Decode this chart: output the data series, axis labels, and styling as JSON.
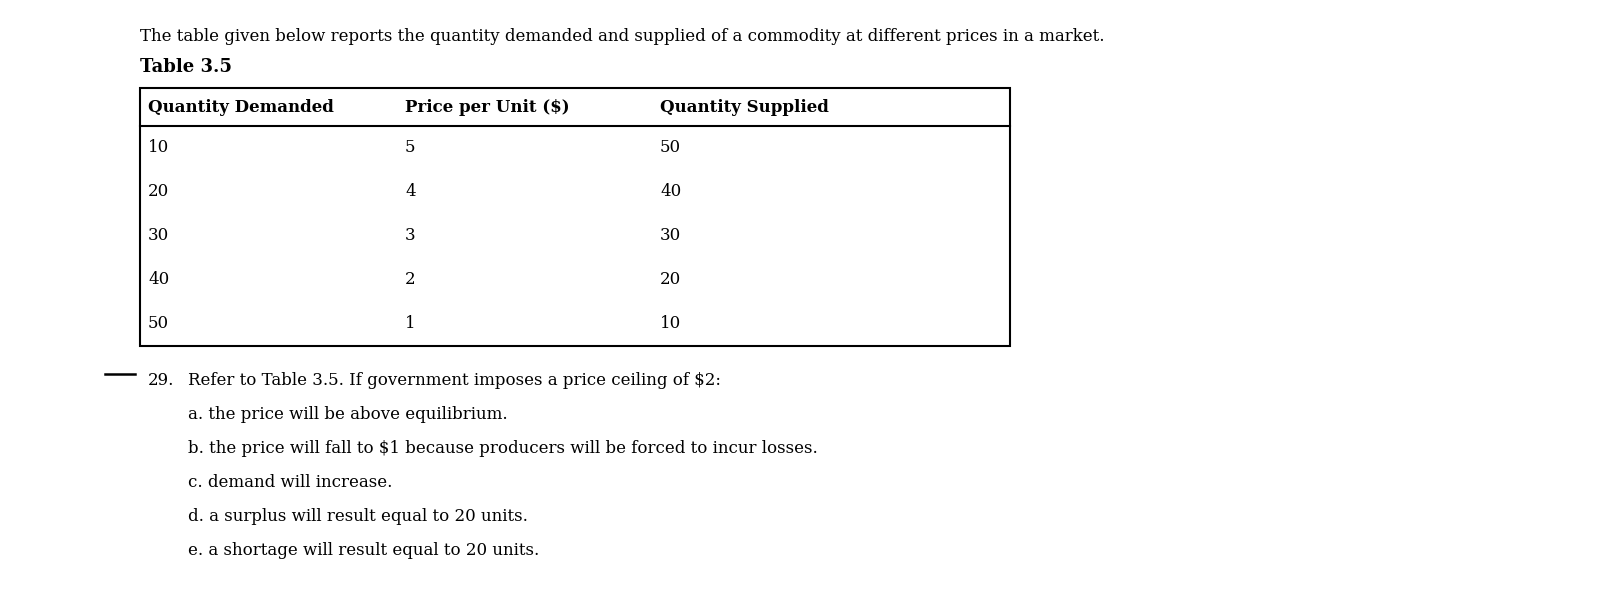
{
  "background_color": "#ffffff",
  "intro_text": "The table given below reports the quantity demanded and supplied of a commodity at different prices in a market.",
  "table_title": "Table 3.5",
  "col_headers": [
    "Quantity Demanded",
    "Price per Unit ($)",
    "Quantity Supplied"
  ],
  "table_data": [
    [
      "10",
      "5",
      "50"
    ],
    [
      "20",
      "4",
      "40"
    ],
    [
      "30",
      "3",
      "30"
    ],
    [
      "40",
      "2",
      "20"
    ],
    [
      "50",
      "1",
      "10"
    ]
  ],
  "question_number": "29.",
  "question_text": "Refer to Table 3.5. If government imposes a price ceiling of $2:",
  "options": [
    "a. the price will be above equilibrium.",
    "b. the price will fall to $1 because producers will be forced to incur losses.",
    "c. demand will increase.",
    "d. a surplus will result equal to 20 units.",
    "e. a shortage will result equal to 20 units."
  ],
  "text_color": "#000000",
  "table_border_color": "#000000",
  "font_family": "serif"
}
